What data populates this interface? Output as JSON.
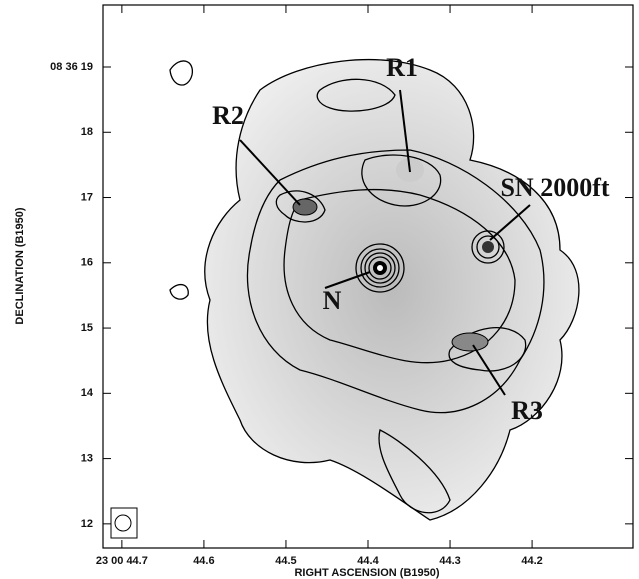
{
  "chart_data": {
    "type": "contour",
    "xlabel": "RIGHT ASCENSION (B1950)",
    "ylabel": "DECLINATION (B1950)",
    "xlim": [
      44.723,
      44.077
    ],
    "xticks": [
      {
        "value": 44.7,
        "label": "23 00 44.7"
      },
      44.6,
      44.5,
      44.4,
      44.3,
      44.2
    ],
    "ylim": [
      11.63,
      19.95
    ],
    "yticks": [
      12,
      13,
      14,
      15,
      16,
      17,
      18,
      {
        "value": 19,
        "label": "08 36 19"
      }
    ],
    "annotations": [
      "R1",
      "R2",
      "SN 2000ft",
      "N",
      "R3"
    ]
  }
}
